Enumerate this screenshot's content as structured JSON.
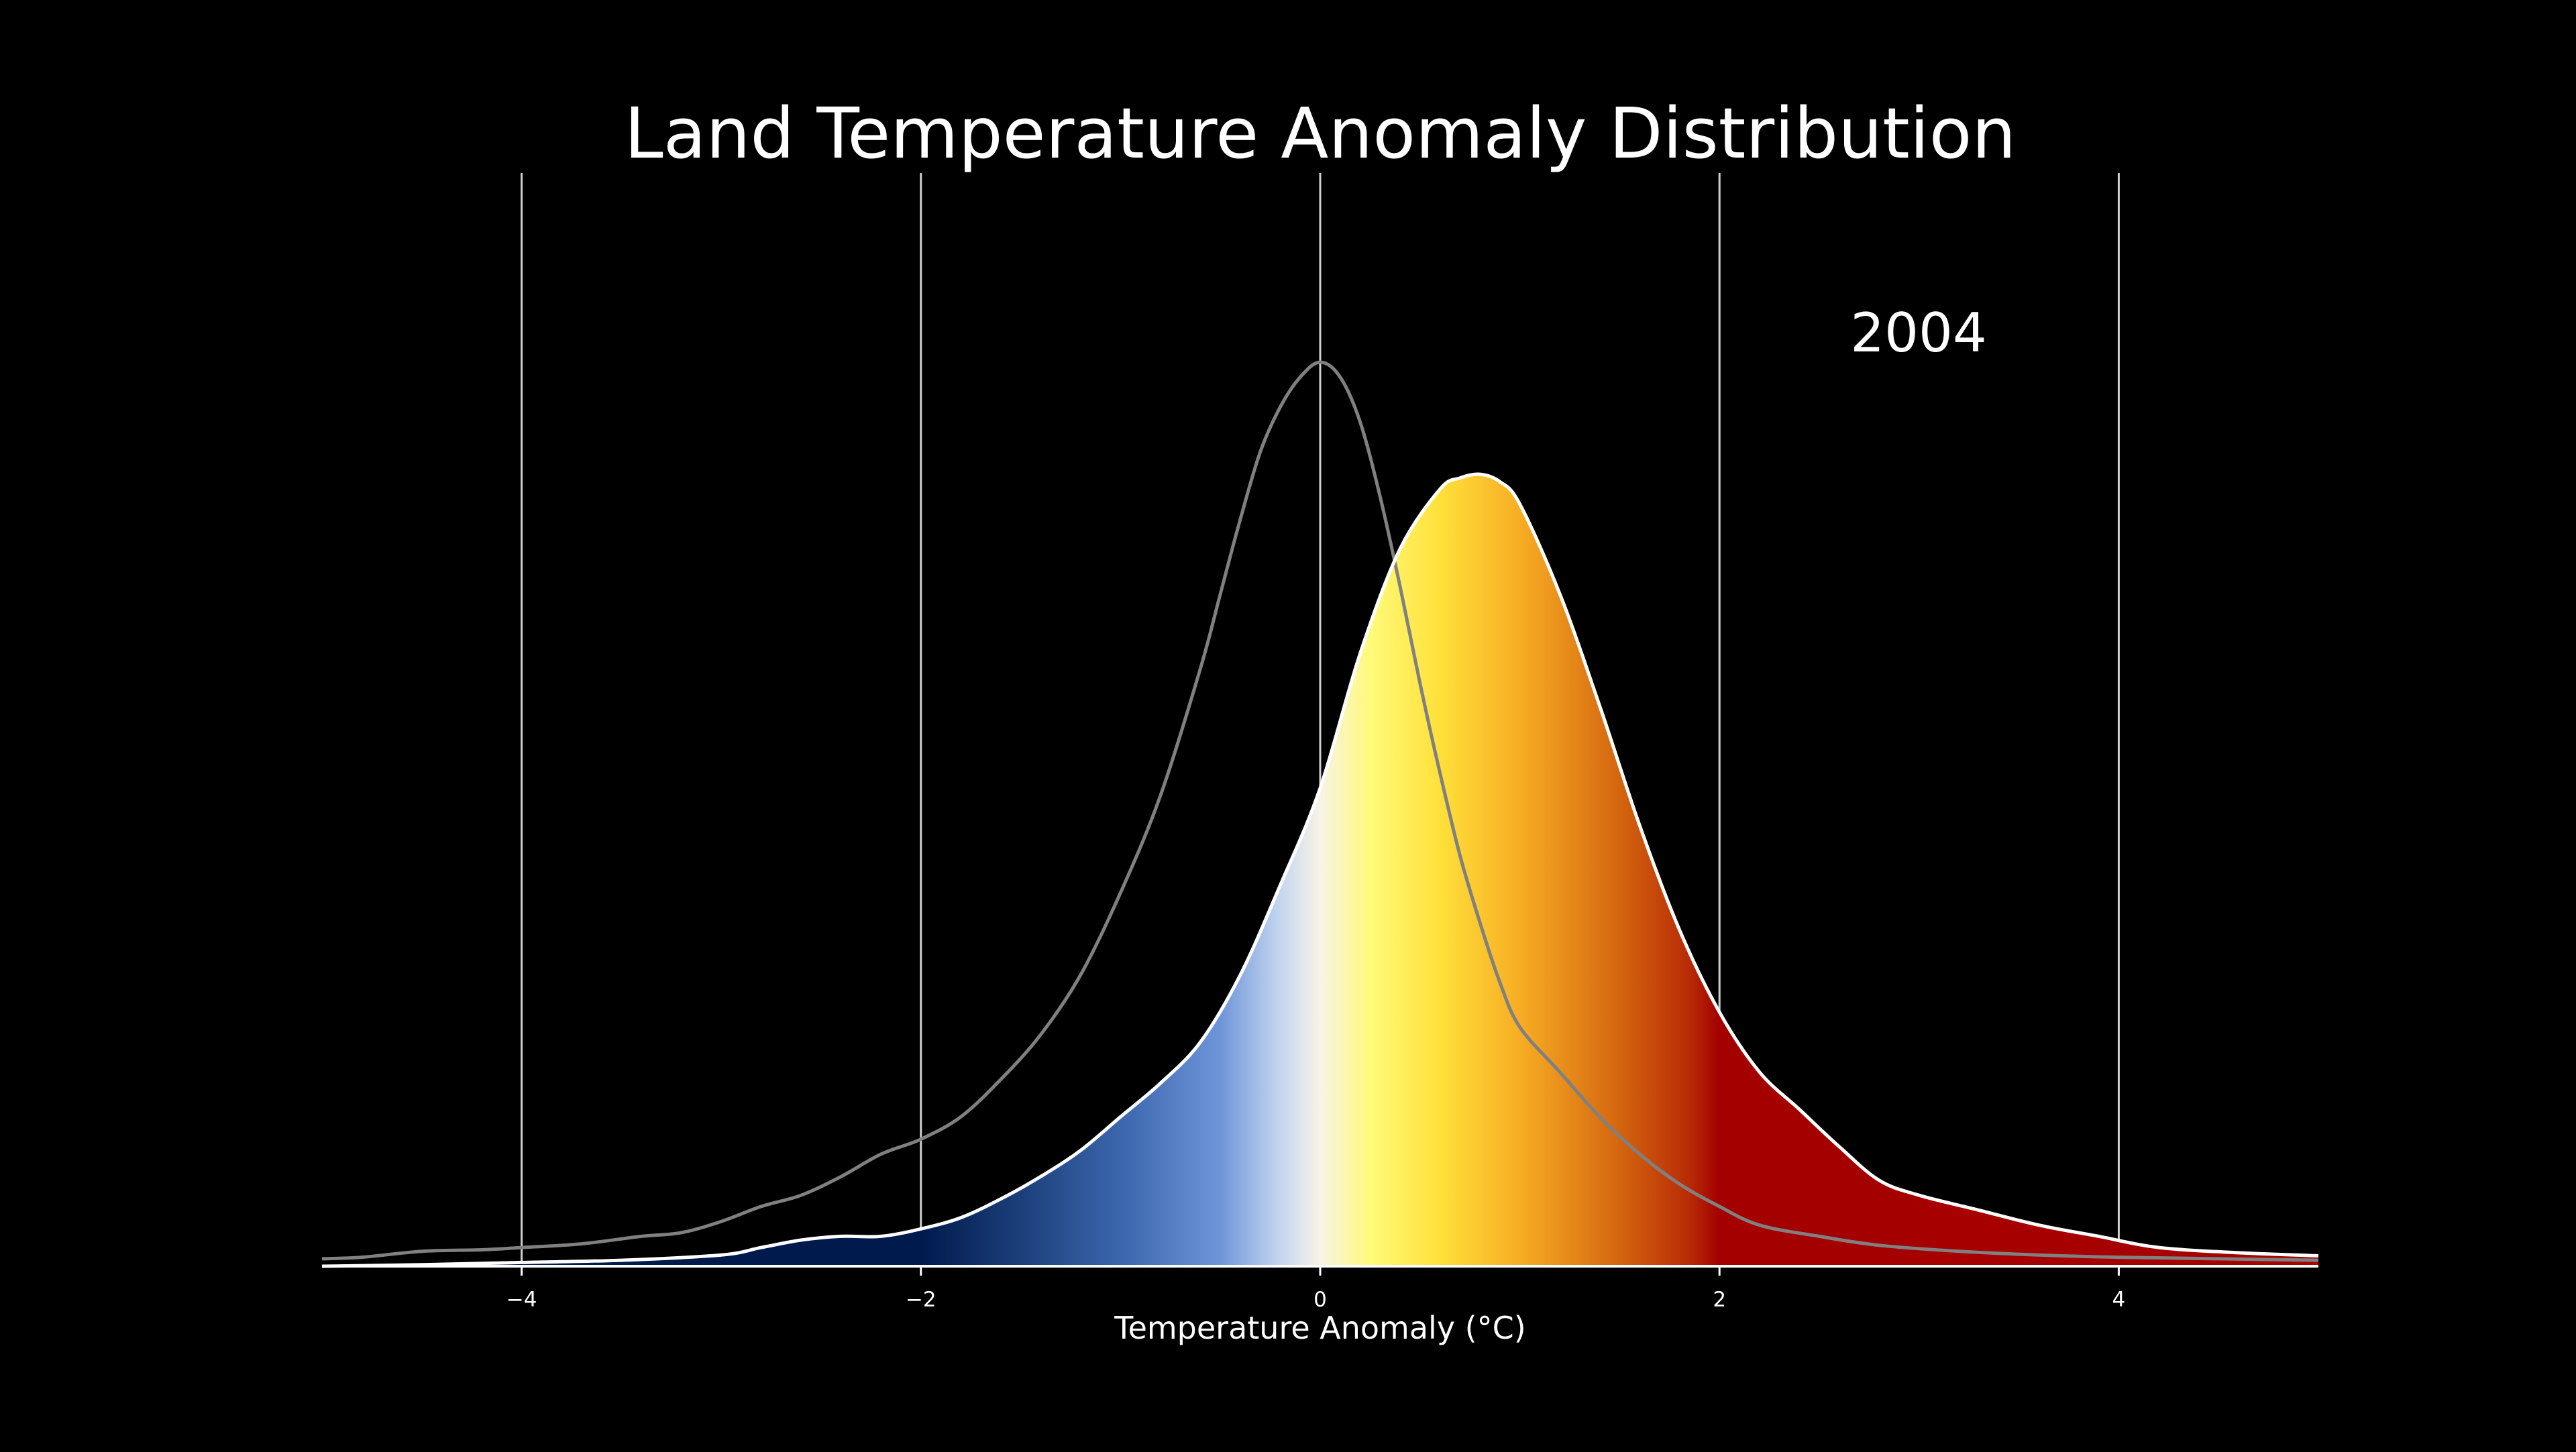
{
  "chart_data": {
    "type": "area",
    "title": "Land Temperature Anomaly Distribution",
    "annotation": "2004",
    "xlabel": "Temperature Anomaly (°C)",
    "ylabel": "",
    "xlim": [
      -5,
      5
    ],
    "ylim": [
      0,
      1.21
    ],
    "x_ticks": [
      -4,
      -2,
      0,
      2,
      4
    ],
    "x_tick_labels": [
      "−4",
      "−2",
      "0",
      "2",
      "4"
    ],
    "grid": "vertical lines at x ticks",
    "colors": {
      "background": "#000000",
      "grid": "#d0d0d0",
      "reference_line": "#808080",
      "current_outline": "#ffffff",
      "colormap": [
        {
          "x": -2.0,
          "color": "#001a4d"
        },
        {
          "x": -1.5,
          "color": "#1c3f7a"
        },
        {
          "x": -1.0,
          "color": "#3b66ad"
        },
        {
          "x": -0.5,
          "color": "#6e95d8"
        },
        {
          "x": -0.2,
          "color": "#c5d6f0"
        },
        {
          "x": 0.0,
          "color": "#f7f3e6"
        },
        {
          "x": 0.25,
          "color": "#fffa7a"
        },
        {
          "x": 0.6,
          "color": "#ffe03a"
        },
        {
          "x": 1.0,
          "color": "#f7ad24"
        },
        {
          "x": 1.5,
          "color": "#d4650f"
        },
        {
          "x": 1.85,
          "color": "#b82b06"
        },
        {
          "x": 2.0,
          "color": "#a40000"
        },
        {
          "x": 5.0,
          "color": "#a80000"
        }
      ]
    },
    "series": [
      {
        "role": "reference",
        "x": [
          -5.0,
          -4.8,
          -4.5,
          -4.2,
          -4.0,
          -3.7,
          -3.4,
          -3.2,
          -3.0,
          -2.8,
          -2.6,
          -2.4,
          -2.2,
          -2.0,
          -1.8,
          -1.6,
          -1.4,
          -1.2,
          -1.0,
          -0.8,
          -0.6,
          -0.5,
          -0.4,
          -0.3,
          -0.2,
          -0.1,
          0.0,
          0.1,
          0.2,
          0.3,
          0.4,
          0.5,
          0.6,
          0.7,
          0.8,
          0.9,
          1.0,
          1.2,
          1.4,
          1.6,
          1.8,
          2.0,
          2.2,
          2.5,
          2.8,
          3.2,
          3.6,
          4.0,
          4.5,
          5.0
        ],
        "values": [
          0.01,
          0.012,
          0.02,
          0.022,
          0.025,
          0.03,
          0.04,
          0.045,
          0.06,
          0.08,
          0.095,
          0.12,
          0.15,
          0.17,
          0.2,
          0.25,
          0.31,
          0.39,
          0.5,
          0.63,
          0.8,
          0.9,
          1.0,
          1.09,
          1.15,
          1.19,
          1.21,
          1.19,
          1.13,
          1.03,
          0.91,
          0.78,
          0.66,
          0.55,
          0.46,
          0.38,
          0.32,
          0.26,
          0.2,
          0.15,
          0.11,
          0.08,
          0.055,
          0.04,
          0.028,
          0.02,
          0.015,
          0.012,
          0.01,
          0.008
        ]
      },
      {
        "role": "current",
        "x": [
          -5.0,
          -4.5,
          -4.0,
          -3.5,
          -3.0,
          -2.8,
          -2.6,
          -2.4,
          -2.2,
          -2.0,
          -1.8,
          -1.6,
          -1.4,
          -1.2,
          -1.0,
          -0.8,
          -0.6,
          -0.4,
          -0.2,
          0.0,
          0.2,
          0.4,
          0.6,
          0.7,
          0.8,
          0.9,
          1.0,
          1.2,
          1.4,
          1.6,
          1.8,
          2.0,
          2.2,
          2.4,
          2.6,
          2.8,
          3.0,
          3.3,
          3.6,
          3.9,
          4.2,
          4.6,
          5.0
        ],
        "values": [
          0.0,
          0.002,
          0.005,
          0.008,
          0.015,
          0.025,
          0.035,
          0.04,
          0.04,
          0.05,
          0.065,
          0.09,
          0.12,
          0.155,
          0.2,
          0.245,
          0.3,
          0.39,
          0.51,
          0.64,
          0.82,
          0.96,
          1.04,
          1.055,
          1.06,
          1.05,
          1.02,
          0.9,
          0.75,
          0.59,
          0.45,
          0.34,
          0.26,
          0.21,
          0.16,
          0.115,
          0.095,
          0.075,
          0.055,
          0.04,
          0.025,
          0.018,
          0.014
        ]
      }
    ]
  }
}
